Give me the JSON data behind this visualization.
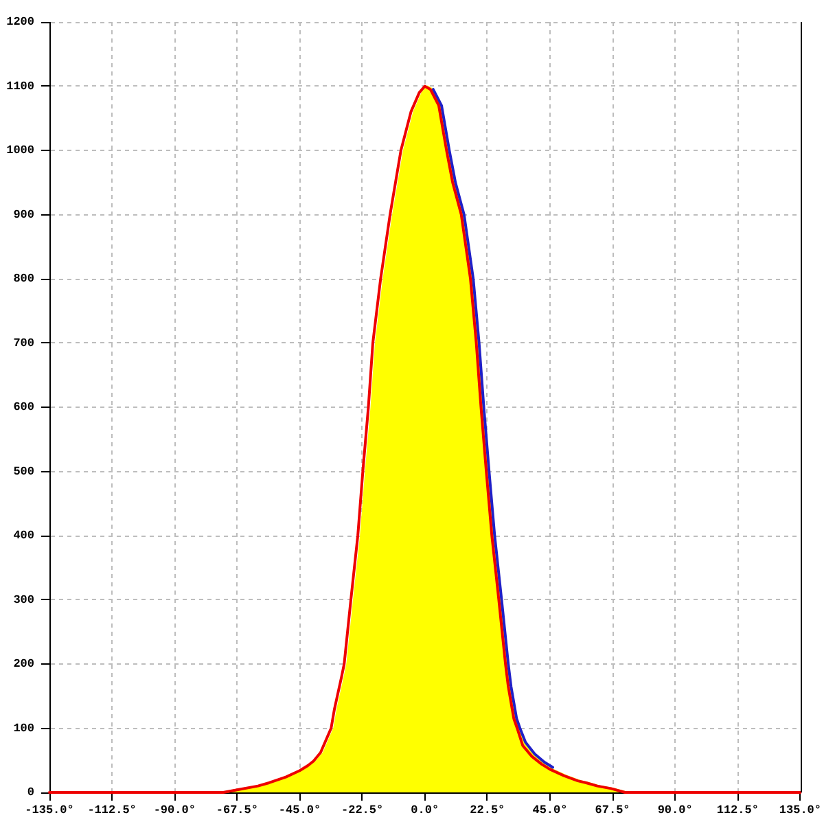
{
  "chart_data": {
    "type": "line",
    "xlim": [
      -135,
      135
    ],
    "xticks": [
      {
        "value": -135,
        "label": "-135.0°"
      },
      {
        "value": -112.5,
        "label": "-112.5°"
      },
      {
        "value": -90,
        "label": "-90.0°"
      },
      {
        "value": -67.5,
        "label": "-67.5°"
      },
      {
        "value": -45,
        "label": "-45.0°"
      },
      {
        "value": -22.5,
        "label": "-22.5°"
      },
      {
        "value": 0,
        "label": "0.0°"
      },
      {
        "value": 22.5,
        "label": "22.5°"
      },
      {
        "value": 45,
        "label": "45.0°"
      },
      {
        "value": 67.5,
        "label": "67.5°"
      },
      {
        "value": 90,
        "label": "90.0°"
      },
      {
        "value": 112.5,
        "label": "112.5°"
      },
      {
        "value": 135,
        "label": "135.0°"
      }
    ],
    "ylim": [
      0,
      1200
    ],
    "yticks": [
      0,
      100,
      200,
      300,
      400,
      500,
      600,
      700,
      800,
      900,
      1000,
      1100,
      1200
    ],
    "grid": true,
    "marker": "none",
    "series": [
      {
        "color": "#ee0000",
        "x": [
          -135,
          -72.5,
          -67.5,
          -60,
          -56,
          -50,
          -45,
          -42,
          -40,
          -37.5,
          -35,
          -33.7,
          -32.5,
          -30,
          -29,
          -26.6,
          -24.1,
          -22.3,
          -20.3,
          -18.7,
          -15.9,
          -12.5,
          -8.6,
          -5,
          -2,
          0,
          2,
          5,
          7.8,
          10,
          13.1,
          16.4,
          18.5,
          20.2,
          22.1,
          24.1,
          26.6,
          29,
          30,
          32,
          33.2,
          35.2,
          38.5,
          42,
          45,
          50,
          55,
          58,
          62,
          67,
          72,
          135
        ],
        "values": [
          0,
          0,
          4,
          10,
          15,
          24,
          34,
          42,
          49,
          62,
          87,
          100,
          130,
          179,
          200,
          300,
          400,
          500,
          600,
          700,
          800,
          900,
          1000,
          1060,
          1090,
          1100,
          1095,
          1070,
          1000,
          950,
          900,
          800,
          700,
          600,
          500,
          400,
          300,
          200,
          165,
          115,
          100,
          73,
          56,
          44,
          36,
          26,
          18,
          15,
          10,
          6,
          0,
          0
        ]
      },
      {
        "color": "#2020c8",
        "x": [
          3,
          6,
          8.8,
          11,
          14.1,
          17.4,
          19.5,
          21.2,
          23.1,
          25.1,
          27.6,
          30,
          31,
          33,
          34.2,
          36.2,
          39.5,
          43,
          46
        ],
        "values": [
          1095,
          1070,
          1000,
          950,
          900,
          800,
          700,
          600,
          500,
          400,
          300,
          200,
          165,
          115,
          100,
          78,
          60,
          47,
          39
        ]
      },
      {
        "type": "area",
        "color": "#ffff00",
        "x": [
          -71.5,
          -66.5,
          -59,
          -55,
          -49,
          -44,
          -41,
          -39,
          -36.5,
          -34,
          -32.7,
          -31.5,
          -29,
          -28,
          -25.6,
          -23.1,
          -21.3,
          -19.3,
          -17.7,
          -14.9,
          -11.5,
          -7.6,
          -4,
          -1,
          1,
          3,
          6,
          8.8,
          11,
          14.1,
          17.4,
          19.5,
          21.2,
          23.1,
          25.1,
          27.6,
          30,
          31,
          33,
          34.2,
          36.2,
          39.5,
          43,
          46,
          51,
          56,
          59,
          63,
          68,
          73
        ],
        "values": [
          0,
          4,
          10,
          15,
          24,
          34,
          42,
          49,
          62,
          87,
          100,
          130,
          179,
          200,
          300,
          400,
          500,
          600,
          700,
          800,
          900,
          1000,
          1060,
          1090,
          1100,
          1095,
          1070,
          1000,
          950,
          900,
          800,
          700,
          600,
          500,
          400,
          300,
          200,
          165,
          115,
          100,
          73,
          56,
          44,
          36,
          26,
          18,
          15,
          10,
          6,
          0
        ]
      }
    ]
  }
}
